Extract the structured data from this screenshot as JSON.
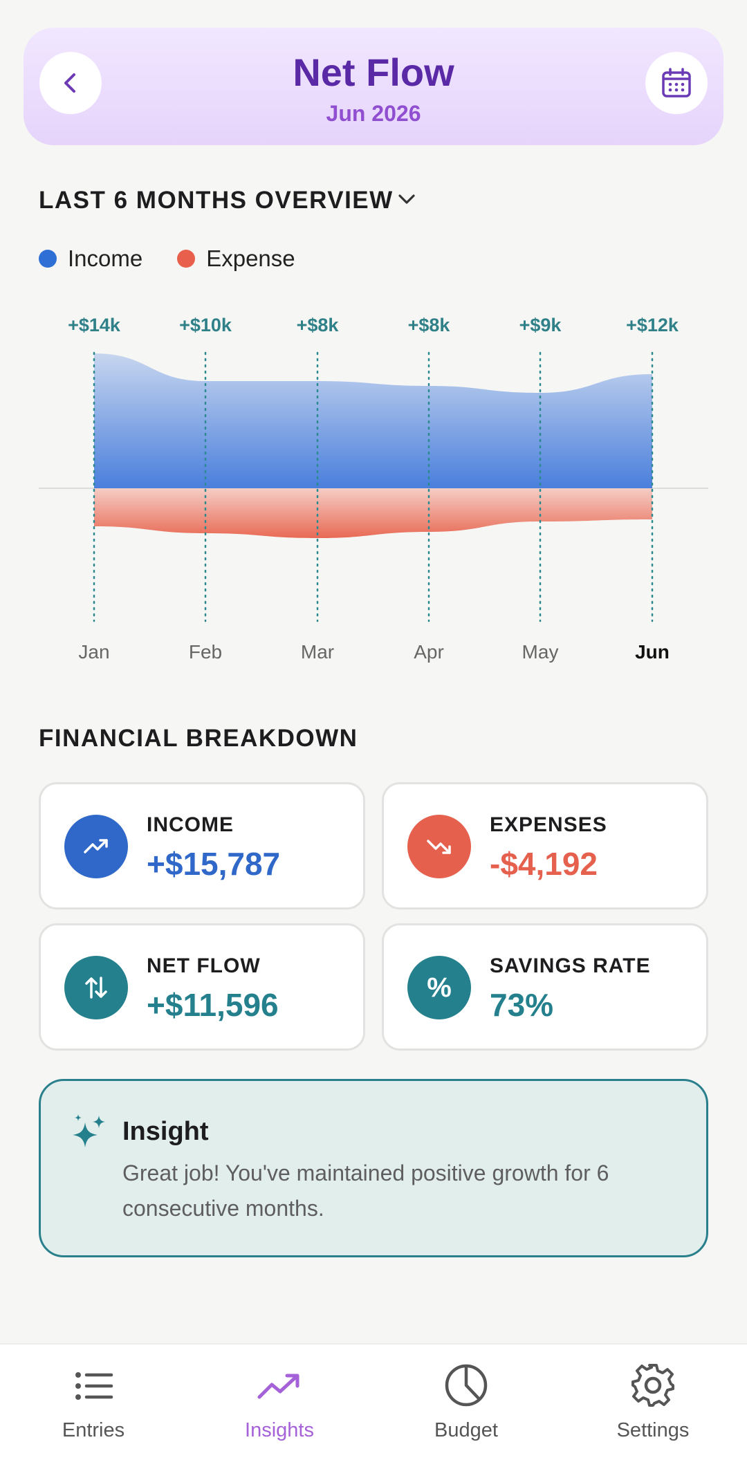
{
  "header": {
    "title": "Net Flow",
    "subtitle": "Jun 2026",
    "back_icon": "chevron-left-icon",
    "calendar_icon": "calendar-icon"
  },
  "overview": {
    "title": "LAST 6 MONTHS OVERVIEW",
    "legend": [
      {
        "label": "Income",
        "color": "#2e6fd6"
      },
      {
        "label": "Expense",
        "color": "#e8604c"
      }
    ]
  },
  "chart_data": {
    "type": "area",
    "categories": [
      "Jan",
      "Feb",
      "Mar",
      "Apr",
      "May",
      "Jun"
    ],
    "selected_category": "Jun",
    "net_labels": [
      "+$14k",
      "+$10k",
      "+$8k",
      "+$8k",
      "+$9k",
      "+$12k"
    ],
    "series": [
      {
        "name": "Income",
        "values": [
          19.5,
          15.5,
          15.5,
          14.8,
          13.8,
          16.5
        ],
        "color": "#3b78d8"
      },
      {
        "name": "Expense",
        "values": [
          5.5,
          6.5,
          7.2,
          6.3,
          4.8,
          4.5
        ],
        "color": "#e8604c"
      }
    ],
    "grid": false
  },
  "breakdown": {
    "title": "FINANCIAL BREAKDOWN",
    "cards": [
      {
        "label": "INCOME",
        "value": "+$15,787",
        "color": "#2f68c8",
        "icon": "trend-up-icon"
      },
      {
        "label": "EXPENSES",
        "value": "-$4,192",
        "color": "#e5604d",
        "icon": "trend-down-icon"
      },
      {
        "label": "NET FLOW",
        "value": "+$11,596",
        "color": "#23808c",
        "icon": "arrows-updown-icon"
      },
      {
        "label": "SAVINGS RATE",
        "value": "73%",
        "color": "#23808c",
        "icon": "percent-icon"
      }
    ]
  },
  "insight": {
    "title": "Insight",
    "text": "Great job! You've maintained positive growth for 6 consecutive months.",
    "icon": "sparkle-icon"
  },
  "nav": {
    "items": [
      {
        "label": "Entries",
        "icon": "list-icon"
      },
      {
        "label": "Insights",
        "icon": "trend-icon",
        "active": true
      },
      {
        "label": "Budget",
        "icon": "pie-chart-icon"
      },
      {
        "label": "Settings",
        "icon": "gear-icon"
      }
    ]
  },
  "colors": {
    "primary_purple": "#5a2aa6",
    "accent_purple": "#a561d8",
    "teal": "#23808c"
  }
}
